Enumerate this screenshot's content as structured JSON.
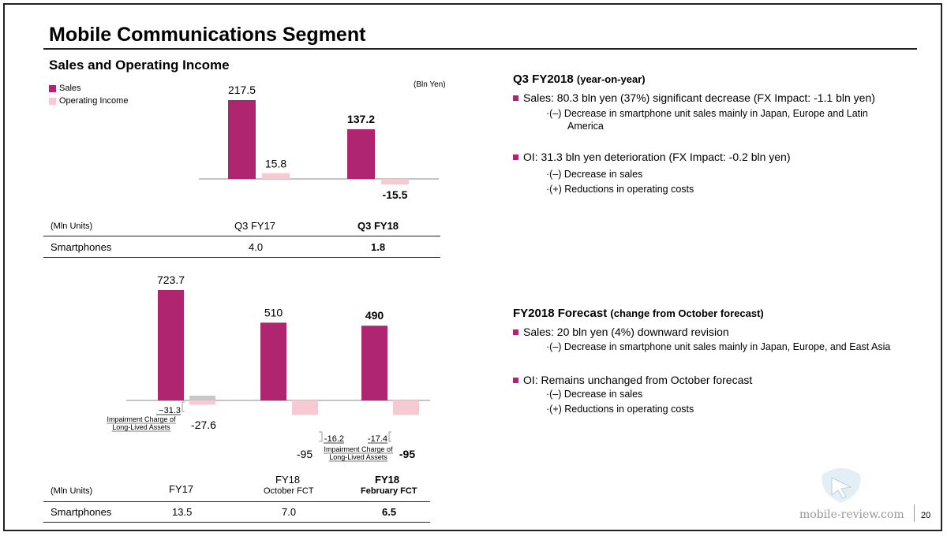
{
  "page": {
    "title": "Mobile Communications Segment",
    "subtitle": "Sales and Operating Income",
    "page_number": "20",
    "watermark": "mobile-review.com"
  },
  "legend": {
    "sales": "Sales",
    "oi": "Operating Income"
  },
  "colors": {
    "sales": "#b0256f",
    "oi": "#f6c9d3",
    "impairment": "#c7c7c7",
    "bullet": "#b0256f"
  },
  "q3_table": {
    "unit": "(Mln Units)",
    "headers": [
      "Q3 FY17",
      "Q3 FY18"
    ],
    "row_label": "Smartphones",
    "values": [
      "4.0",
      "1.8"
    ]
  },
  "fy_table": {
    "unit": "(Mln Units)",
    "headers": [
      {
        "line1": "FY17",
        "line2": ""
      },
      {
        "line1": "FY18",
        "line2": "October FCT"
      },
      {
        "line1": "FY18",
        "line2": "February FCT"
      }
    ],
    "row_label": "Smartphones",
    "values": [
      "13.5",
      "7.0",
      "6.5"
    ]
  },
  "chart_data": [
    {
      "type": "bar",
      "unit": "(Bln Yen)",
      "categories": [
        "Q3 FY17",
        "Q3 FY18"
      ],
      "series": [
        {
          "name": "Sales",
          "values": [
            217.5,
            137.2
          ],
          "labels": [
            "217.5",
            "137.2"
          ]
        },
        {
          "name": "Operating Income",
          "values": [
            15.8,
            -15.5
          ],
          "labels": [
            "15.8",
            "-15.5"
          ]
        }
      ]
    },
    {
      "type": "bar",
      "categories": [
        "FY17",
        "FY18 October FCT",
        "FY18 February FCT"
      ],
      "series": [
        {
          "name": "Sales",
          "values": [
            723.7,
            510,
            490
          ],
          "labels": [
            "723.7",
            "510",
            "490"
          ]
        },
        {
          "name": "Operating Income",
          "values": [
            -27.6,
            -95,
            -95
          ],
          "labels": [
            "-27.6",
            "-95",
            "-95"
          ]
        }
      ],
      "impairment": [
        {
          "value": -31.3,
          "label": "−31.3"
        },
        {
          "value": -16.2,
          "label": "-16.2"
        },
        {
          "value": -17.4,
          "label": "-17.4"
        }
      ],
      "impairment_caption": [
        "Impairment Charge of",
        "Long-Lived Assets"
      ]
    }
  ],
  "q3_commentary": {
    "heading": "Q3 FY2018",
    "heading_note": "(year-on-year)",
    "bullets": [
      {
        "text": "Sales: 80.3 bln yen (37%) significant decrease (FX Impact: -1.1 bln yen)",
        "subs": [
          "·(–) Decrease in smartphone unit sales mainly in Japan, Europe and Latin",
          "America"
        ]
      },
      {
        "text": "OI: 31.3 bln yen deterioration (FX Impact: -0.2 bln yen)",
        "subs": [
          "·(–) Decrease in sales",
          "·(+) Reductions in operating costs"
        ]
      }
    ]
  },
  "fy_commentary": {
    "heading": "FY2018 Forecast",
    "heading_note": "(change from October forecast)",
    "bullets": [
      {
        "text": "Sales: 20 bln yen (4%) downward revision",
        "subs": [
          "·(–) Decrease in smartphone unit sales mainly in Japan, Europe, and East Asia"
        ]
      },
      {
        "text": "OI: Remains unchanged from October forecast",
        "subs": [
          "·(–) Decrease in sales",
          "·(+) Reductions in operating costs"
        ]
      }
    ]
  }
}
